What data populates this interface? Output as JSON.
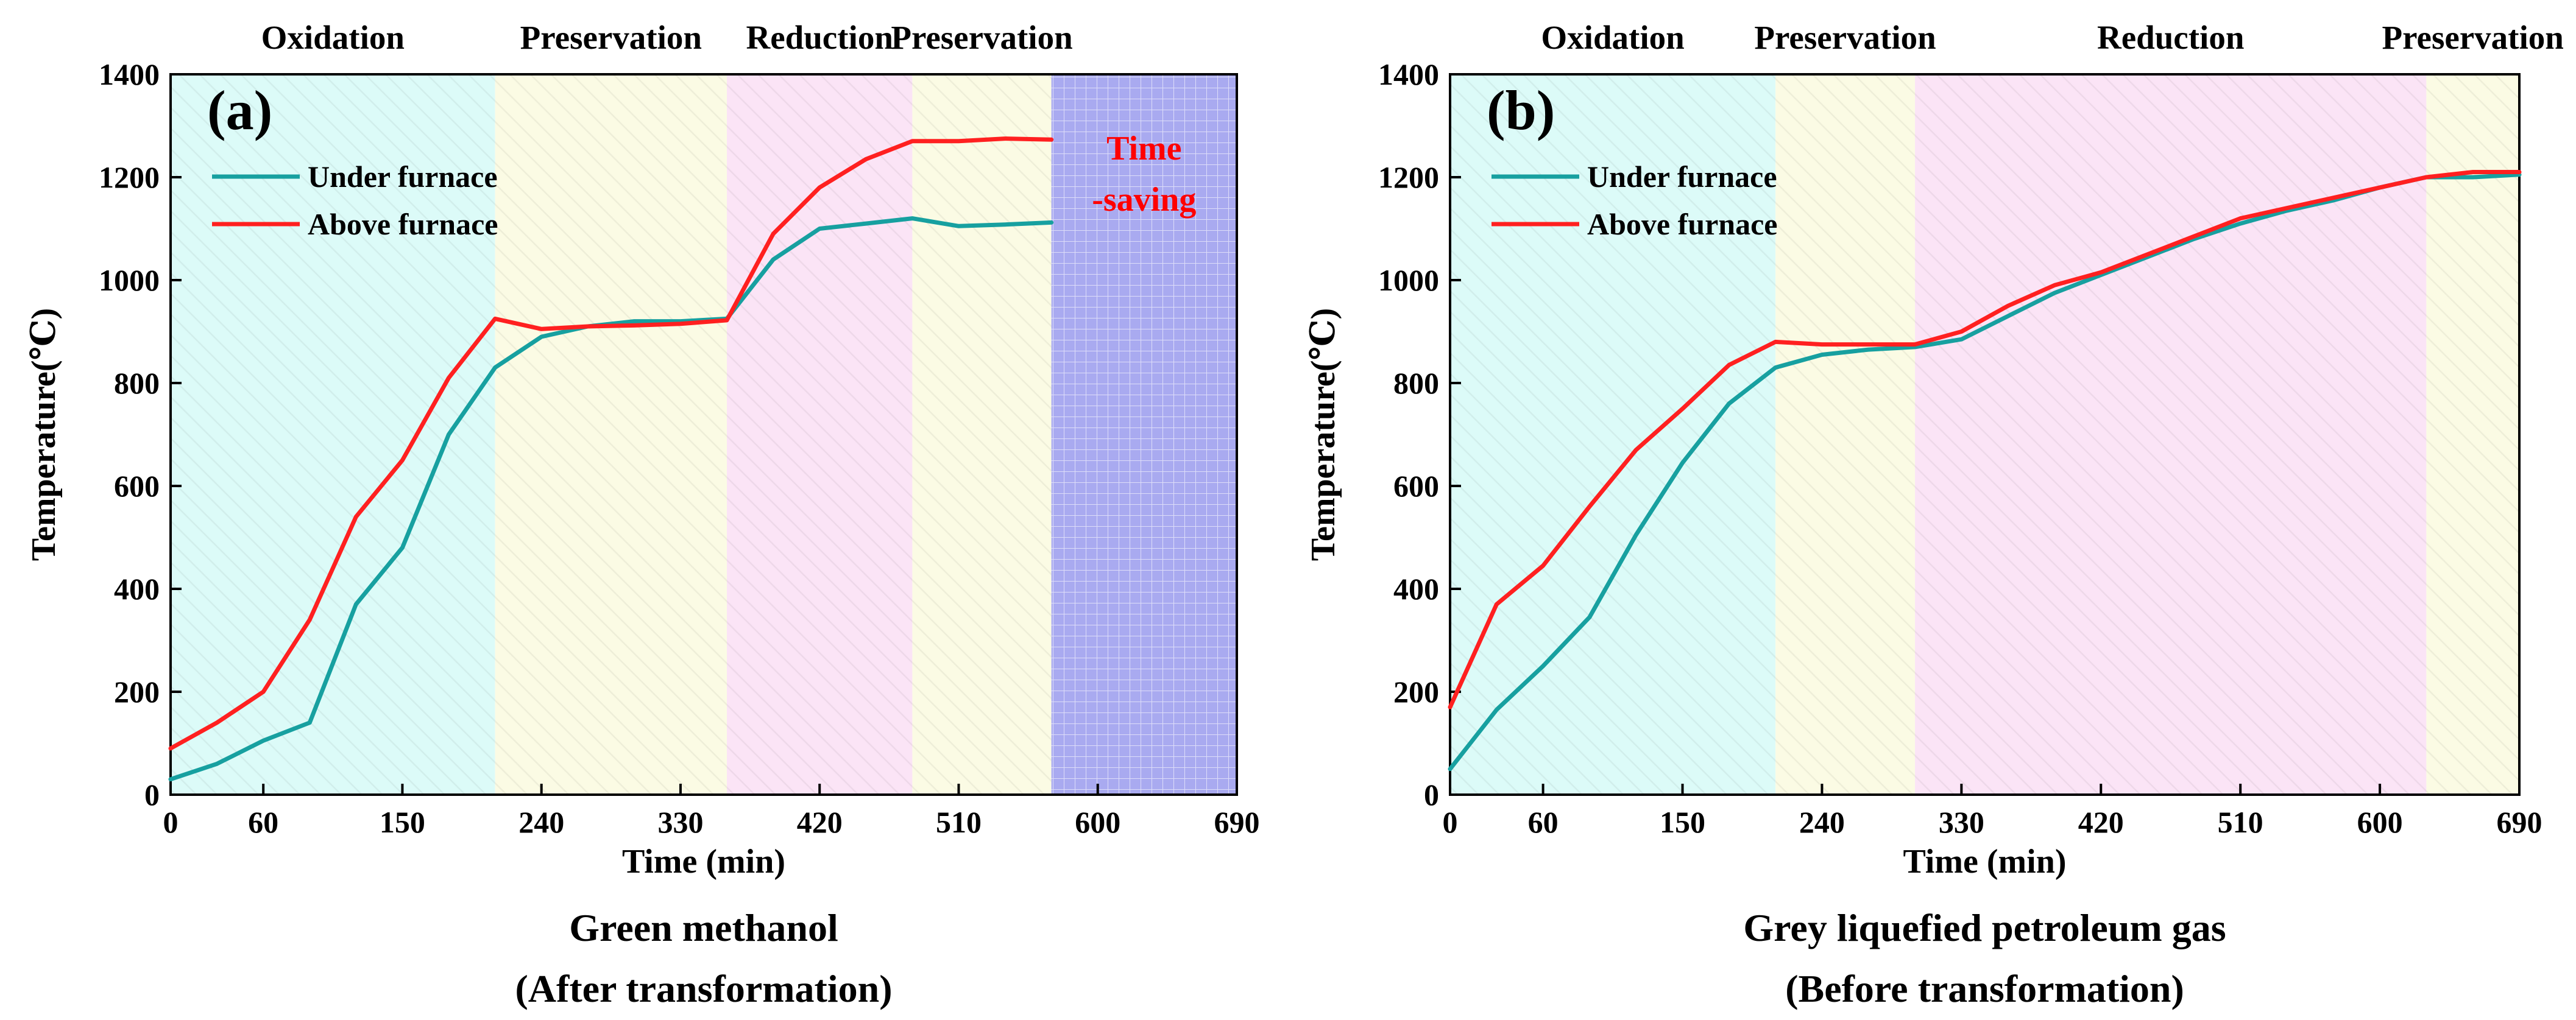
{
  "chart_data": [
    {
      "type": "line",
      "panel": "(a)",
      "xlabel": "Time (min)",
      "ylabel": "Temperature(℃)",
      "xlim": [
        0,
        690
      ],
      "ylim": [
        0,
        1400
      ],
      "x_ticks": [
        0,
        60,
        150,
        240,
        330,
        420,
        510,
        600,
        690
      ],
      "y_ticks": [
        0,
        200,
        400,
        600,
        800,
        1000,
        1200,
        1400
      ],
      "caption_line1": "Green methanol",
      "caption_line2": "(After transformation)",
      "phases": [
        {
          "label": "Oxidation",
          "start": 0,
          "end": 210,
          "color": "#dcfbf8"
        },
        {
          "label": "Preservation",
          "start": 210,
          "end": 360,
          "color": "#fbfbe4"
        },
        {
          "label": "Reduction",
          "start": 360,
          "end": 480,
          "color": "#fbe4f6"
        },
        {
          "label": "Preservation",
          "start": 480,
          "end": 570,
          "color": "#fbfbe4"
        }
      ],
      "note": {
        "lines": [
          "Time",
          "-saving"
        ],
        "start": 570,
        "end": 690,
        "color": "#a9aaf0"
      },
      "legend": [
        {
          "name": "Under furnace",
          "color": "#17a0a0"
        },
        {
          "name": "Above furnace",
          "color": "#ff2020"
        }
      ],
      "series": [
        {
          "name": "Under furnace",
          "color": "#17a0a0",
          "x": [
            0,
            30,
            60,
            90,
            120,
            150,
            180,
            210,
            240,
            270,
            300,
            330,
            360,
            390,
            420,
            450,
            480,
            510,
            540,
            570
          ],
          "y": [
            30,
            60,
            105,
            140,
            370,
            480,
            700,
            830,
            890,
            910,
            920,
            920,
            925,
            1040,
            1100,
            1110,
            1120,
            1105,
            1108,
            1112
          ]
        },
        {
          "name": "Above furnace",
          "color": "#ff2020",
          "x": [
            0,
            30,
            60,
            90,
            120,
            150,
            180,
            210,
            240,
            270,
            300,
            330,
            360,
            390,
            420,
            450,
            480,
            510,
            540,
            570
          ],
          "y": [
            90,
            140,
            200,
            340,
            540,
            650,
            810,
            925,
            905,
            910,
            912,
            915,
            922,
            1090,
            1180,
            1235,
            1270,
            1270,
            1275,
            1273
          ]
        }
      ]
    },
    {
      "type": "line",
      "panel": "(b)",
      "xlabel": "Time (min)",
      "ylabel": "Temperature(℃)",
      "xlim": [
        0,
        690
      ],
      "ylim": [
        0,
        1400
      ],
      "x_ticks": [
        0,
        60,
        150,
        240,
        330,
        420,
        510,
        600,
        690
      ],
      "y_ticks": [
        0,
        200,
        400,
        600,
        800,
        1000,
        1200,
        1400
      ],
      "caption_line1": "Grey liquefied petroleum gas",
      "caption_line2": "(Before transformation)",
      "phases": [
        {
          "label": "Oxidation",
          "start": 0,
          "end": 210,
          "color": "#dcfbf8"
        },
        {
          "label": "Preservation",
          "start": 210,
          "end": 300,
          "color": "#fbfbe4"
        },
        {
          "label": "Reduction",
          "start": 300,
          "end": 630,
          "color": "#fbe4f6"
        },
        {
          "label": "Preservation",
          "start": 630,
          "end": 690,
          "color": "#fbfbe4"
        }
      ],
      "legend": [
        {
          "name": "Under furnace",
          "color": "#17a0a0"
        },
        {
          "name": "Above furnace",
          "color": "#ff2020"
        }
      ],
      "series": [
        {
          "name": "Under furnace",
          "color": "#17a0a0",
          "x": [
            0,
            30,
            60,
            90,
            120,
            150,
            180,
            210,
            240,
            270,
            300,
            330,
            360,
            390,
            420,
            450,
            480,
            510,
            540,
            570,
            600,
            630,
            660,
            690
          ],
          "y": [
            50,
            165,
            250,
            345,
            505,
            645,
            760,
            830,
            855,
            865,
            870,
            885,
            930,
            975,
            1010,
            1045,
            1080,
            1110,
            1135,
            1155,
            1180,
            1200,
            1200,
            1205
          ]
        },
        {
          "name": "Above furnace",
          "color": "#ff2020",
          "x": [
            0,
            30,
            60,
            90,
            120,
            150,
            180,
            210,
            240,
            270,
            300,
            330,
            360,
            390,
            420,
            450,
            480,
            510,
            540,
            570,
            600,
            630,
            660,
            690
          ],
          "y": [
            170,
            370,
            445,
            560,
            670,
            750,
            835,
            880,
            875,
            875,
            875,
            900,
            950,
            990,
            1015,
            1050,
            1085,
            1120,
            1140,
            1160,
            1180,
            1200,
            1210,
            1210
          ]
        }
      ]
    }
  ]
}
